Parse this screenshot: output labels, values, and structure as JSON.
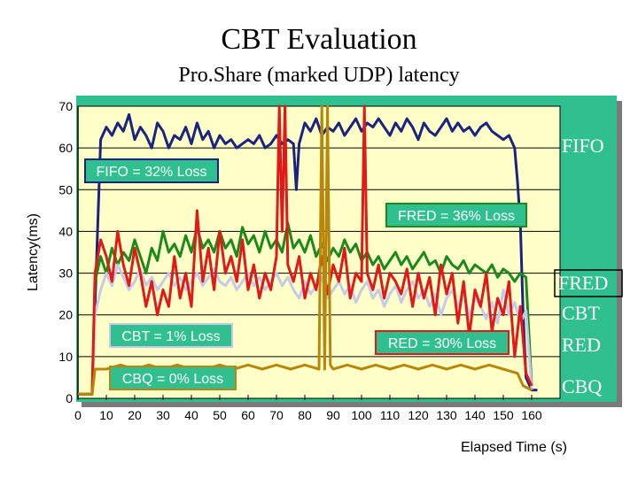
{
  "chart_data": {
    "type": "line",
    "title": "CBT Evaluation",
    "subtitle": "Pro.Share (marked UDP) latency",
    "xlabel": "Elapsed Time (s)",
    "ylabel": "Latency(ms)",
    "xlim": [
      0,
      170
    ],
    "ylim": [
      0,
      70
    ],
    "x_ticks": [
      0,
      10,
      20,
      30,
      40,
      50,
      60,
      70,
      80,
      90,
      100,
      110,
      120,
      130,
      140,
      150,
      160
    ],
    "y_ticks": [
      0,
      10,
      20,
      30,
      40,
      50,
      60,
      70
    ],
    "grid": true,
    "series": [
      {
        "name": "FIFO",
        "color": "#1a237e",
        "x": [
          0,
          3,
          5,
          6,
          8,
          10,
          12,
          14,
          16,
          18,
          20,
          22,
          24,
          26,
          28,
          30,
          32,
          34,
          36,
          38,
          40,
          42,
          44,
          46,
          48,
          50,
          52,
          54,
          56,
          58,
          60,
          62,
          64,
          66,
          68,
          70,
          72,
          74,
          76,
          77,
          78,
          80,
          82,
          84,
          86,
          88,
          90,
          92,
          94,
          96,
          98,
          100,
          102,
          104,
          106,
          108,
          110,
          112,
          114,
          116,
          118,
          120,
          122,
          124,
          126,
          128,
          130,
          132,
          134,
          136,
          138,
          140,
          142,
          144,
          146,
          148,
          150,
          152,
          154,
          155,
          156,
          157,
          158,
          160,
          162
        ],
        "y": [
          1,
          1,
          1,
          22,
          62,
          65,
          63,
          66,
          64,
          68,
          62,
          65,
          63,
          60,
          66,
          64,
          60,
          63,
          62,
          65,
          61,
          66,
          62,
          64,
          60,
          63,
          61,
          62,
          60,
          61,
          62,
          61,
          63,
          60,
          61,
          63,
          61,
          62,
          61,
          50,
          61,
          66,
          64,
          67,
          63,
          65,
          64,
          66,
          63,
          65,
          67,
          64,
          66,
          65,
          67,
          65,
          63,
          66,
          64,
          67,
          65,
          62,
          66,
          64,
          63,
          65,
          67,
          64,
          66,
          64,
          65,
          63,
          65,
          66,
          64,
          63,
          62,
          63,
          60,
          52,
          42,
          20,
          5,
          2,
          2
        ]
      },
      {
        "name": "FRED",
        "color": "#1b8a1b",
        "x": [
          0,
          5,
          6,
          8,
          10,
          12,
          14,
          16,
          18,
          20,
          22,
          24,
          26,
          28,
          30,
          32,
          34,
          36,
          38,
          40,
          42,
          44,
          46,
          48,
          50,
          52,
          54,
          56,
          58,
          60,
          62,
          64,
          66,
          68,
          70,
          72,
          74,
          76,
          78,
          80,
          82,
          84,
          86,
          88,
          90,
          92,
          94,
          96,
          98,
          100,
          102,
          104,
          106,
          108,
          110,
          112,
          114,
          116,
          118,
          120,
          122,
          124,
          126,
          128,
          130,
          132,
          134,
          136,
          138,
          140,
          142,
          144,
          146,
          148,
          150,
          152,
          154,
          156,
          158,
          160
        ],
        "y": [
          1,
          1,
          28,
          34,
          30,
          36,
          32,
          35,
          33,
          38,
          34,
          30,
          36,
          33,
          40,
          35,
          37,
          34,
          39,
          35,
          41,
          36,
          38,
          35,
          40,
          36,
          38,
          34,
          41,
          37,
          39,
          35,
          40,
          36,
          38,
          35,
          42,
          36,
          38,
          35,
          39,
          34,
          37,
          33,
          36,
          34,
          38,
          35,
          37,
          33,
          35,
          32,
          34,
          31,
          33,
          35,
          32,
          34,
          31,
          33,
          35,
          32,
          33,
          30,
          34,
          32,
          31,
          33,
          30,
          32,
          31,
          30,
          32,
          29,
          31,
          30,
          28,
          30,
          29,
          3
        ]
      },
      {
        "name": "CBT",
        "color": "#c5cae9",
        "x": [
          0,
          5,
          6,
          8,
          10,
          12,
          14,
          16,
          18,
          20,
          22,
          24,
          26,
          28,
          30,
          32,
          34,
          36,
          38,
          40,
          42,
          44,
          46,
          48,
          50,
          52,
          54,
          56,
          58,
          60,
          62,
          64,
          66,
          68,
          70,
          72,
          74,
          76,
          78,
          80,
          82,
          84,
          86,
          88,
          90,
          92,
          94,
          96,
          98,
          100,
          102,
          104,
          106,
          108,
          110,
          112,
          114,
          116,
          118,
          120,
          122,
          124,
          126,
          128,
          130,
          132,
          134,
          136,
          138,
          140,
          142,
          144,
          146,
          148,
          150,
          152,
          154,
          156,
          158,
          160
        ],
        "y": [
          1,
          1,
          20,
          26,
          30,
          27,
          32,
          29,
          26,
          28,
          31,
          27,
          29,
          26,
          28,
          30,
          27,
          29,
          26,
          28,
          30,
          27,
          29,
          31,
          28,
          27,
          29,
          26,
          28,
          30,
          27,
          29,
          26,
          28,
          30,
          27,
          29,
          26,
          24,
          28,
          25,
          27,
          29,
          24,
          26,
          28,
          25,
          27,
          23,
          26,
          28,
          24,
          26,
          22,
          25,
          27,
          23,
          26,
          28,
          24,
          26,
          22,
          25,
          20,
          24,
          26,
          22,
          25,
          20,
          24,
          22,
          19,
          23,
          18,
          26,
          20,
          23,
          18,
          21,
          2
        ]
      },
      {
        "name": "RED",
        "color": "#e11919",
        "x": [
          0,
          5,
          6,
          8,
          10,
          12,
          14,
          16,
          18,
          20,
          22,
          24,
          26,
          28,
          30,
          32,
          34,
          36,
          38,
          40,
          42,
          44,
          46,
          48,
          50,
          52,
          54,
          56,
          58,
          60,
          62,
          64,
          66,
          68,
          70,
          71,
          72,
          73,
          74,
          76,
          78,
          80,
          82,
          84,
          86,
          88,
          90,
          92,
          94,
          96,
          98,
          100,
          101,
          102,
          104,
          106,
          108,
          110,
          112,
          114,
          116,
          118,
          120,
          122,
          124,
          126,
          128,
          130,
          132,
          134,
          136,
          138,
          140,
          142,
          144,
          146,
          148,
          150,
          152,
          154,
          156,
          158,
          160
        ],
        "y": [
          1,
          1,
          30,
          38,
          34,
          28,
          40,
          32,
          27,
          36,
          30,
          22,
          28,
          20,
          26,
          22,
          34,
          24,
          30,
          22,
          45,
          28,
          36,
          26,
          40,
          30,
          34,
          28,
          38,
          26,
          32,
          24,
          30,
          26,
          34,
          70,
          40,
          70,
          32,
          28,
          34,
          24,
          30,
          26,
          34,
          25,
          32,
          28,
          36,
          24,
          30,
          28,
          70,
          30,
          26,
          32,
          24,
          30,
          28,
          25,
          31,
          22,
          30,
          24,
          29,
          20,
          32,
          25,
          30,
          18,
          28,
          15,
          26,
          22,
          30,
          16,
          24,
          20,
          28,
          10,
          22,
          6,
          3
        ]
      },
      {
        "name": "CBQ",
        "color": "#b8860b",
        "x": [
          0,
          5,
          6,
          10,
          15,
          20,
          25,
          30,
          35,
          40,
          45,
          50,
          55,
          60,
          65,
          70,
          75,
          80,
          85,
          86,
          87,
          88,
          89,
          90,
          95,
          100,
          105,
          110,
          115,
          120,
          125,
          130,
          135,
          140,
          145,
          150,
          155,
          157,
          160
        ],
        "y": [
          1,
          1,
          7,
          7,
          8,
          7,
          8,
          7,
          8,
          7,
          7,
          8,
          7,
          8,
          7,
          8,
          7,
          8,
          7,
          70,
          7,
          70,
          8,
          7,
          8,
          7,
          8,
          7,
          8,
          7,
          8,
          7,
          8,
          7,
          8,
          7,
          6,
          3,
          2
        ]
      }
    ],
    "annotations": [
      {
        "text": "FIFO = 32% Loss",
        "border": "#1a237e"
      },
      {
        "text": "FRED = 36% Loss",
        "border": "#1b8a1b"
      },
      {
        "text": "CBT = 1% Loss",
        "border": "#c5cae9"
      },
      {
        "text": "RED = 30% Loss",
        "border": "#e11919"
      },
      {
        "text": "CBQ = 0% Loss",
        "border": "#b8860b"
      }
    ],
    "legend": [
      {
        "text": "FIFO"
      },
      {
        "text": "FRED",
        "boxed": true
      },
      {
        "text": "CBT"
      },
      {
        "text": "RED"
      },
      {
        "text": "CBQ"
      }
    ],
    "colors": {
      "background": "#30c090",
      "plot_area": "#ffffc8"
    }
  }
}
